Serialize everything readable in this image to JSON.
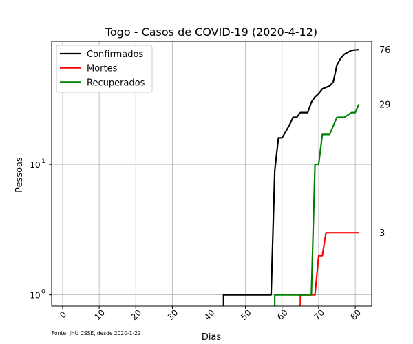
{
  "chart_data": {
    "type": "line",
    "title": "Togo - Casos de COVID-19 (2020-4-12)",
    "xlabel": "Dias",
    "ylabel": "Pessoas",
    "y_scale": "log",
    "xlim": [
      -3,
      84.5
    ],
    "ylim": [
      0.82,
      88
    ],
    "x_ticks": [
      0,
      10,
      20,
      30,
      40,
      50,
      60,
      70,
      80
    ],
    "y_ticks": [
      {
        "value": 1,
        "label": "10",
        "exp": "0"
      },
      {
        "value": 10,
        "label": "10",
        "exp": "1"
      }
    ],
    "grid": true,
    "legend_position": "top-left",
    "source_note": "Fonte: JHU CSSE, desde 2020-1-22",
    "series": [
      {
        "name": "Confirmados",
        "color": "#000000",
        "end_label": "76",
        "points": [
          [
            44,
            0.5
          ],
          [
            44,
            1
          ],
          [
            57,
            1
          ],
          [
            58,
            9
          ],
          [
            59,
            16
          ],
          [
            60,
            16
          ],
          [
            62,
            20
          ],
          [
            63,
            23
          ],
          [
            64,
            23
          ],
          [
            65,
            25
          ],
          [
            67,
            25
          ],
          [
            68,
            30
          ],
          [
            69,
            33
          ],
          [
            70,
            35
          ],
          [
            71,
            38
          ],
          [
            73,
            40
          ],
          [
            74,
            43
          ],
          [
            75,
            58
          ],
          [
            76,
            65
          ],
          [
            77,
            70
          ],
          [
            79,
            75
          ],
          [
            81,
            76
          ]
        ]
      },
      {
        "name": "Mortes",
        "color": "#ff0000",
        "end_label": "3",
        "points": [
          [
            65,
            0.5
          ],
          [
            65,
            1
          ],
          [
            69,
            1
          ],
          [
            70,
            2
          ],
          [
            71,
            2
          ],
          [
            72,
            3
          ],
          [
            81,
            3
          ]
        ]
      },
      {
        "name": "Recuperados",
        "color": "#008000",
        "end_label": "29",
        "points": [
          [
            58,
            0.5
          ],
          [
            58,
            1
          ],
          [
            68,
            1
          ],
          [
            69,
            10
          ],
          [
            70,
            10
          ],
          [
            71,
            17
          ],
          [
            73,
            17
          ],
          [
            75,
            23
          ],
          [
            77,
            23
          ],
          [
            79,
            25
          ],
          [
            80,
            25
          ],
          [
            81,
            29
          ]
        ]
      }
    ]
  }
}
